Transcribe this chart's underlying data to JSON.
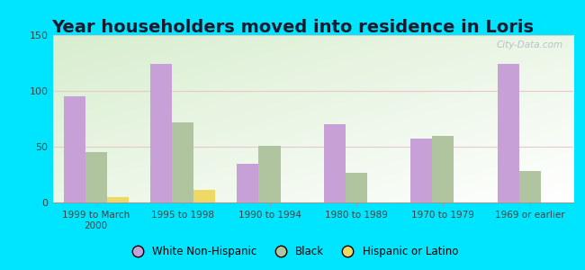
{
  "title": "Year householders moved into residence in Loris",
  "categories": [
    "1999 to March\n2000",
    "1995 to 1998",
    "1990 to 1994",
    "1980 to 1989",
    "1970 to 1979",
    "1969 or earlier"
  ],
  "white_non_hispanic": [
    95,
    124,
    35,
    70,
    57,
    124
  ],
  "black": [
    45,
    72,
    51,
    27,
    60,
    28
  ],
  "hispanic_or_latino": [
    5,
    11,
    0,
    0,
    0,
    0
  ],
  "bar_colors": {
    "white": "#c8a0d8",
    "black": "#b0c4a0",
    "hispanic": "#f0d864"
  },
  "background_outer": "#00e5ff",
  "ylim": [
    0,
    150
  ],
  "yticks": [
    0,
    50,
    100,
    150
  ],
  "watermark": "City-Data.com",
  "legend_labels": [
    "White Non-Hispanic",
    "Black",
    "Hispanic or Latino"
  ],
  "title_fontsize": 14,
  "title_color": "#1a1a2e"
}
